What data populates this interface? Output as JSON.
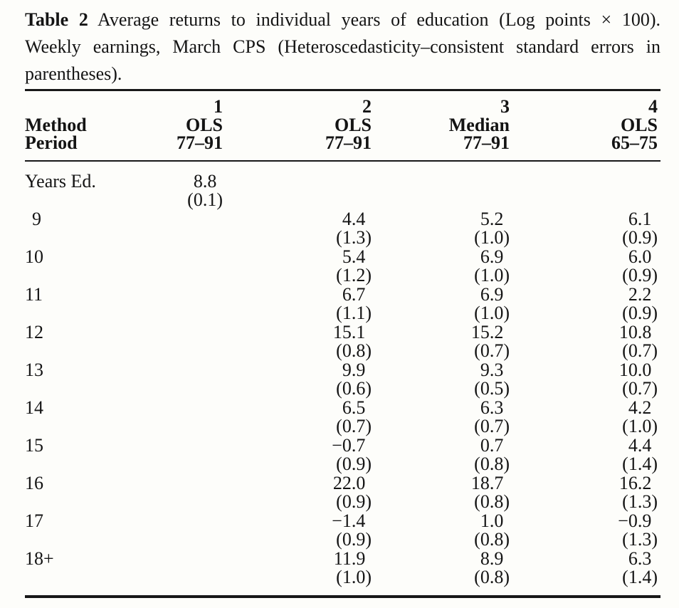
{
  "caption": {
    "label": "Table 2",
    "line1_rest": " Average returns to individual years of education (Log points × 100).",
    "line2": "Weekly earnings, March CPS (Heteroscedasticity–consistent standard errors in",
    "line3": "parentheses)."
  },
  "table": {
    "header_rows": [
      {
        "label": "",
        "cells": [
          "1",
          "2",
          "3",
          "4"
        ]
      },
      {
        "label": "Method",
        "cells": [
          "OLS",
          "OLS",
          "Median",
          "OLS"
        ]
      },
      {
        "label": "Period",
        "cells": [
          "77–91",
          "77–91",
          "77–91",
          "65–75"
        ]
      }
    ],
    "rows": [
      {
        "label": "Years Ed.",
        "estimates": [
          "8.8",
          "",
          "",
          ""
        ],
        "std_errors": [
          "(0.1)",
          "",
          "",
          ""
        ]
      },
      {
        "label": "9",
        "estimates": [
          "",
          "4.4",
          "5.2",
          "6.1"
        ],
        "std_errors": [
          "",
          "(1.3)",
          "(1.0)",
          "(0.9)"
        ]
      },
      {
        "label": "10",
        "estimates": [
          "",
          "5.4",
          "6.9",
          "6.0"
        ],
        "std_errors": [
          "",
          "(1.2)",
          "(1.0)",
          "(0.9)"
        ]
      },
      {
        "label": "11",
        "estimates": [
          "",
          "6.7",
          "6.9",
          "2.2"
        ],
        "std_errors": [
          "",
          "(1.1)",
          "(1.0)",
          "(0.9)"
        ]
      },
      {
        "label": "12",
        "estimates": [
          "",
          "15.1",
          "15.2",
          "10.8"
        ],
        "std_errors": [
          "",
          "(0.8)",
          "(0.7)",
          "(0.7)"
        ]
      },
      {
        "label": "13",
        "estimates": [
          "",
          "9.9",
          "9.3",
          "10.0"
        ],
        "std_errors": [
          "",
          "(0.6)",
          "(0.5)",
          "(0.7)"
        ]
      },
      {
        "label": "14",
        "estimates": [
          "",
          "6.5",
          "6.3",
          "4.2"
        ],
        "std_errors": [
          "",
          "(0.7)",
          "(0.7)",
          "(1.0)"
        ]
      },
      {
        "label": "15",
        "estimates": [
          "",
          "−0.7",
          "0.7",
          "4.4"
        ],
        "std_errors": [
          "",
          "(0.9)",
          "(0.8)",
          "(1.4)"
        ]
      },
      {
        "label": "16",
        "estimates": [
          "",
          "22.0",
          "18.7",
          "16.2"
        ],
        "std_errors": [
          "",
          "(0.9)",
          "(0.8)",
          "(1.3)"
        ]
      },
      {
        "label": "17",
        "estimates": [
          "",
          "−1.4",
          "1.0",
          "−0.9"
        ],
        "std_errors": [
          "",
          "(0.9)",
          "(0.8)",
          "(1.3)"
        ]
      },
      {
        "label": "18+",
        "estimates": [
          "",
          "11.9",
          "8.9",
          "6.3"
        ],
        "std_errors": [
          "",
          "(1.0)",
          "(0.8)",
          "(1.4)"
        ]
      }
    ]
  }
}
